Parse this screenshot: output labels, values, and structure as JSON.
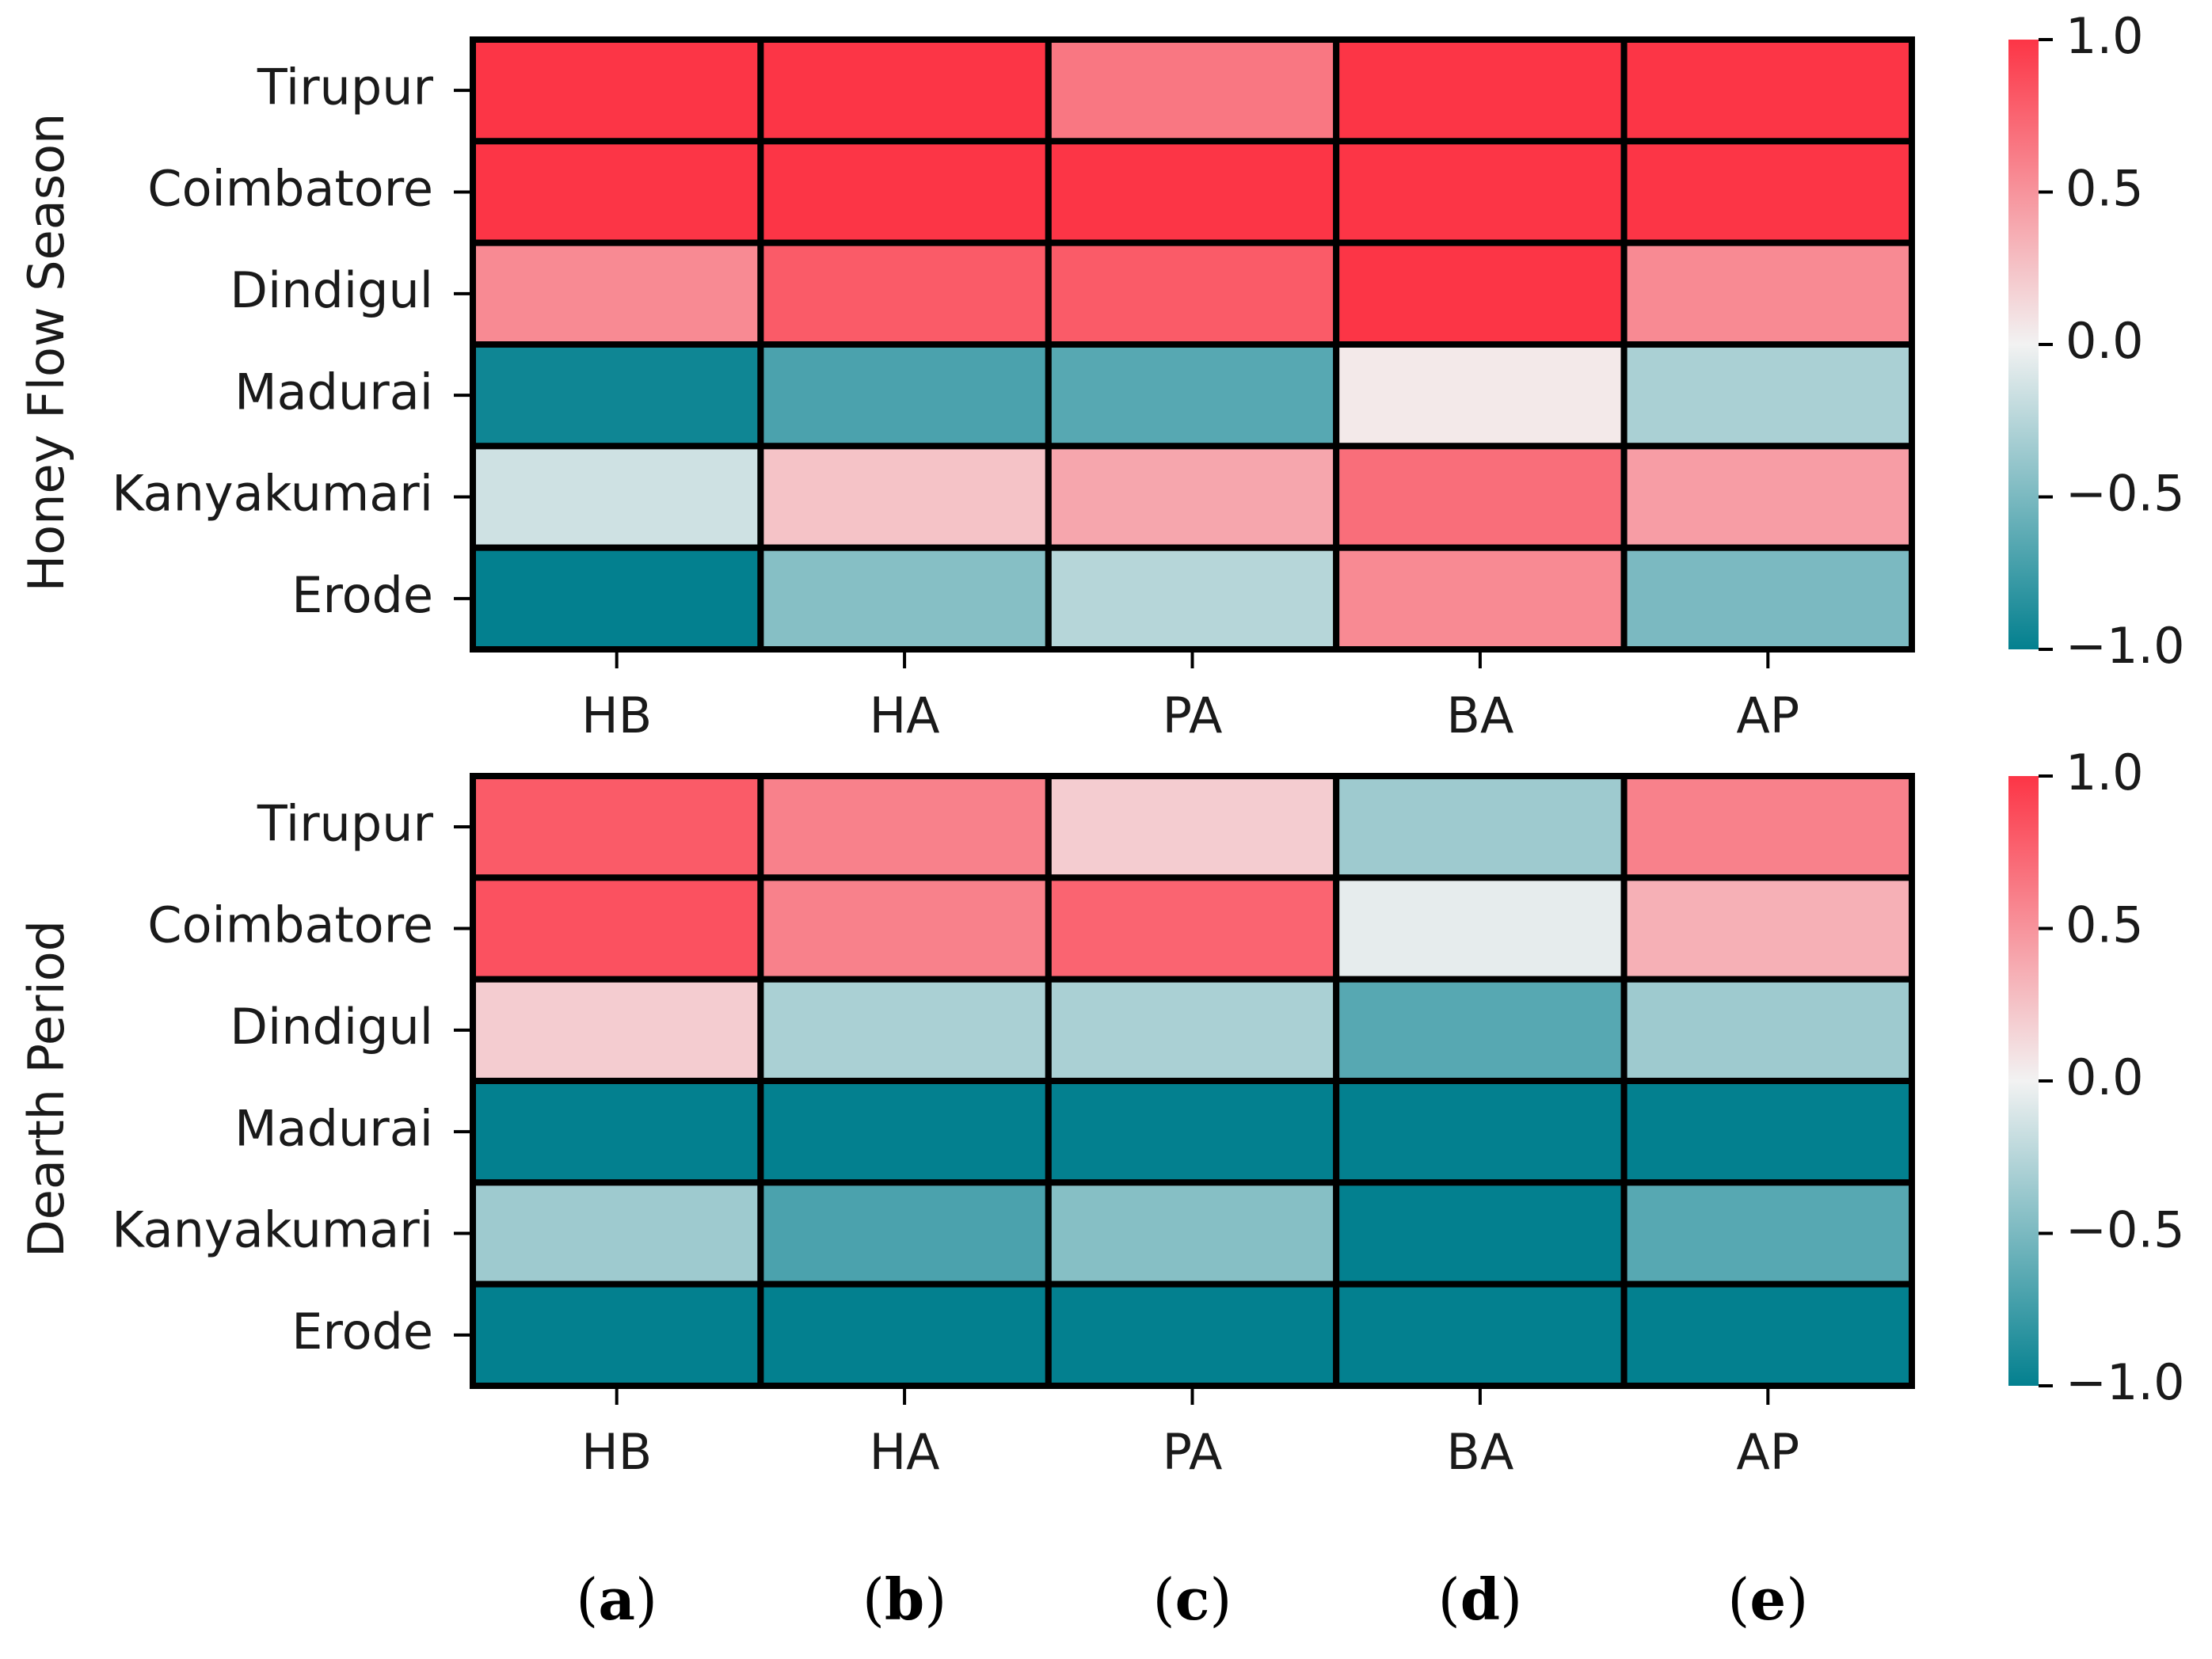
{
  "chart_data": [
    {
      "type": "heatmap",
      "ylabel": "Honey Flow Season",
      "x_categories": [
        "HB",
        "HA",
        "PA",
        "BA",
        "AP"
      ],
      "y_categories": [
        "Tirupur",
        "Coimbatore",
        "Dindigul",
        "Madurai",
        "Kanyakumari",
        "Erode"
      ],
      "values": [
        [
          1.0,
          1.0,
          0.65,
          1.0,
          1.0
        ],
        [
          1.0,
          1.0,
          1.0,
          1.0,
          1.0
        ],
        [
          0.55,
          0.8,
          0.8,
          1.0,
          0.55
        ],
        [
          -0.95,
          -0.7,
          -0.65,
          0.05,
          -0.3
        ],
        [
          -0.15,
          0.25,
          0.4,
          0.7,
          0.45
        ],
        [
          -1.0,
          -0.45,
          -0.25,
          0.55,
          -0.5
        ]
      ],
      "colorbar": {
        "min": -1.0,
        "max": 1.0,
        "ticks": [
          "1.0",
          "0.5",
          "0.0",
          "−0.5",
          "−1.0"
        ]
      },
      "colors": {
        "negative": "#03808f",
        "neutral": "#f2f2f2",
        "positive": "#fc3546",
        "grid": "#000000"
      }
    },
    {
      "type": "heatmap",
      "ylabel": "Dearth Period",
      "x_categories": [
        "HB",
        "HA",
        "PA",
        "BA",
        "AP"
      ],
      "y_categories": [
        "Tirupur",
        "Coimbatore",
        "Dindigul",
        "Madurai",
        "Kanyakumari",
        "Erode"
      ],
      "values": [
        [
          0.8,
          0.6,
          0.2,
          -0.35,
          0.6
        ],
        [
          0.85,
          0.6,
          0.75,
          -0.05,
          0.35
        ],
        [
          0.2,
          -0.3,
          -0.3,
          -0.65,
          -0.35
        ],
        [
          -1.0,
          -1.0,
          -1.0,
          -1.0,
          -1.0
        ],
        [
          -0.35,
          -0.7,
          -0.45,
          -1.0,
          -0.65
        ],
        [
          -1.0,
          -1.0,
          -1.0,
          -1.0,
          -1.0
        ]
      ],
      "colorbar": {
        "min": -1.0,
        "max": 1.0,
        "ticks": [
          "1.0",
          "0.5",
          "0.0",
          "−0.5",
          "−1.0"
        ]
      },
      "colors": {
        "negative": "#03808f",
        "neutral": "#f2f2f2",
        "positive": "#fc3546",
        "grid": "#000000"
      }
    }
  ],
  "panel_labels": [
    "a",
    "b",
    "c",
    "d",
    "e"
  ]
}
